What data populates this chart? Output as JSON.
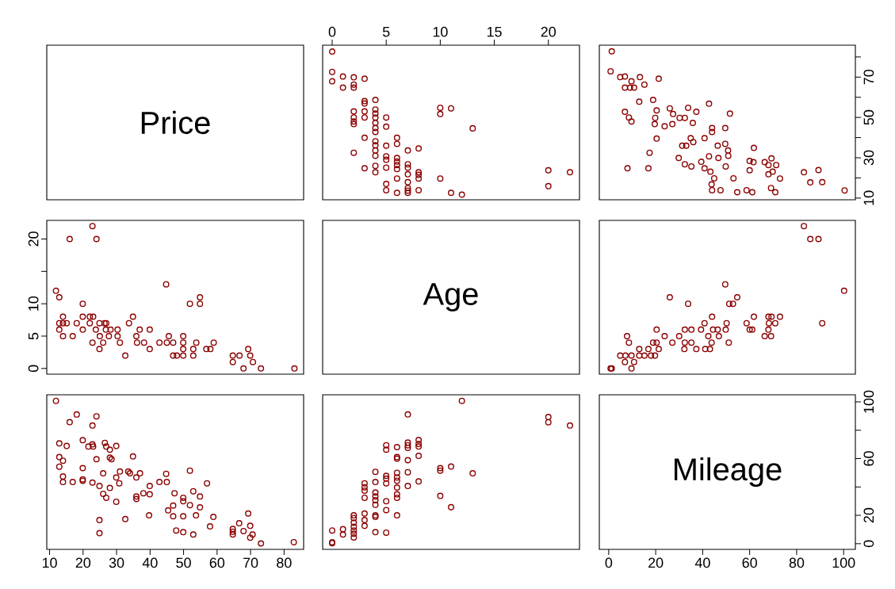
{
  "chart_data": [
    {
      "type": "other",
      "annotations": [
        "Price"
      ]
    },
    {
      "type": "scatter",
      "marker": "circle",
      "color": "#8b0000",
      "tick_labels": "x",
      "xlim": [
        -0.88,
        22.88
      ],
      "xticks": [
        0,
        5,
        10,
        15,
        20
      ],
      "ylim": [
        9.16,
        85.84
      ],
      "x": [
        0,
        0,
        0,
        1,
        1,
        2,
        2,
        2,
        3,
        3,
        3,
        3,
        3,
        4,
        4,
        4,
        4,
        4,
        4,
        4,
        2,
        2,
        2,
        2,
        5,
        5,
        10,
        10,
        11,
        13,
        3,
        4,
        4,
        4,
        4,
        4,
        4,
        2,
        5,
        5,
        5,
        5,
        6,
        6,
        6,
        6,
        6,
        6,
        6,
        7,
        7,
        7,
        7,
        7,
        7,
        7,
        7,
        8,
        8,
        8,
        8,
        8,
        3,
        5,
        5,
        6,
        10,
        11,
        12,
        20,
        20,
        22
      ],
      "values": [
        82.7,
        72.6,
        67.9,
        70.3,
        64.8,
        69.9,
        66.3,
        64.8,
        69.2,
        58.1,
        56.9,
        53,
        50,
        58.7,
        53.9,
        51.9,
        50,
        47.3,
        44.7,
        42.8,
        53,
        50,
        48,
        46.7,
        50,
        45.4,
        54.8,
        51.7,
        54.5,
        44.6,
        39.9,
        38.2,
        36.2,
        33.6,
        31,
        26,
        22.8,
        32.5,
        36,
        30.7,
        29,
        25.1,
        39.9,
        36.9,
        29.9,
        28.1,
        26.4,
        24.4,
        19.7,
        33.6,
        26.8,
        25.1,
        21.8,
        17.9,
        15,
        13.7,
        12.6,
        34.6,
        22.8,
        21.5,
        19.7,
        13.9,
        24.8,
        17,
        13.9,
        12.6,
        19.7,
        12.6,
        11.7,
        23.8,
        15.9,
        22.8
      ]
    },
    {
      "type": "scatter",
      "marker": "circle",
      "color": "#8b0000",
      "tick_labels": "y",
      "xlim": [
        -4,
        105
      ],
      "ylim": [
        9.16,
        85.84
      ],
      "yticks": [
        10,
        {
          "value": 20,
          "label": null
        },
        30,
        {
          "value": 40,
          "label": null
        },
        50,
        {
          "value": 60,
          "label": null
        },
        70,
        {
          "value": 80,
          "label": null
        }
      ],
      "x": [
        1.3,
        0.8,
        4.9,
        6.9,
        13.3,
        21.3,
        9.7,
        15.2,
        6.9,
        9.1,
        10.8,
        13,
        18.9,
        42.7,
        6.9,
        8.6,
        9.7,
        20.4,
        19.8,
        19.6,
        26,
        27.4,
        33.8,
        37.3,
        30.2,
        32.4,
        35.8,
        23.8,
        27.1,
        51.6,
        44,
        44,
        49.6,
        20.4,
        17.4,
        8,
        16.9,
        31.3,
        33,
        34.9,
        36,
        40.8,
        29.8,
        32.4,
        35.2,
        39.4,
        40.8,
        42.7,
        43.3,
        44.9,
        43.8,
        44,
        47.6,
        46.4,
        46.7,
        49.6,
        50.8,
        50.9,
        49.8,
        53.1,
        54.7,
        58.7,
        61.1,
        60,
        61.6,
        60,
        61.8,
        66.4,
        68,
        69.3,
        71.3,
        68,
        69.8,
        69.1,
        70.9,
        72.9,
        83.1,
        89.3,
        85.8,
        90.9,
        100.4
      ],
      "values": [
        82.8,
        72.9,
        70,
        70.3,
        70,
        69.2,
        67.9,
        66.3,
        64.8,
        64.8,
        64.8,
        57.8,
        58.7,
        56.8,
        52.8,
        50,
        48,
        53.5,
        49.8,
        46.7,
        54.5,
        51.7,
        54.8,
        52.8,
        49.8,
        49.8,
        47.3,
        45.6,
        46.7,
        51.9,
        44.7,
        42.8,
        44.7,
        39.5,
        32.5,
        24.8,
        24.8,
        36,
        36,
        39.7,
        37.8,
        39.7,
        29.9,
        26.8,
        25.7,
        28,
        24.8,
        30.7,
        23.1,
        19.8,
        16.8,
        13.9,
        13.9,
        36,
        29.9,
        36.9,
        33.6,
        31,
        25.7,
        19.8,
        12.9,
        13.9,
        12.9,
        28.4,
        27.8,
        23.8,
        34.9,
        27.8,
        26.4,
        29.7,
        26.4,
        21.8,
        23.1,
        15,
        12.9,
        19.7,
        22.8,
        23.9,
        17.8,
        17.9,
        13.8
      ]
    },
    {
      "type": "scatter",
      "marker": "circle",
      "color": "#8b0000",
      "tick_labels": "y",
      "xlim": [
        9.16,
        85.84
      ],
      "ylim": [
        -0.88,
        22.88
      ],
      "yticks": [
        0,
        5,
        10,
        {
          "value": 15,
          "label": null
        },
        20
      ],
      "x": [
        11.9,
        12.9,
        12.9,
        14,
        14,
        15.1,
        12.9,
        14,
        16,
        22.8,
        24,
        16.9,
        18.1,
        19.9,
        19.9,
        19.9,
        22,
        22,
        23,
        22.8,
        24.9,
        25,
        26,
        23.8,
        24.9,
        26.4,
        26.9,
        26.8,
        27.7,
        28.2,
        30.3,
        30.3,
        31,
        32.6,
        33.7,
        34.9,
        35.9,
        36.1,
        36.9,
        38.2,
        39.9,
        39.9,
        42.8,
        44.8,
        45.6,
        45,
        46.9,
        46.9,
        48,
        49.9,
        49.9,
        49.9,
        49.9,
        51.9,
        52.9,
        52.9,
        53.8,
        54.9,
        54.9,
        56.8,
        58,
        59,
        64.7,
        64.7,
        66.7,
        67.9,
        69.3,
        69.9,
        70.7,
        73.1,
        83.1
      ],
      "values": [
        12,
        11,
        7,
        8,
        7,
        7,
        6,
        5,
        20,
        22,
        20,
        5,
        7,
        10,
        8,
        6,
        8,
        7,
        8,
        4,
        3,
        5,
        4,
        6,
        7,
        7,
        7,
        6,
        5,
        6,
        6,
        5,
        4,
        2,
        7,
        8,
        5,
        4,
        6,
        4,
        6,
        3,
        4,
        13,
        5,
        4,
        4,
        2,
        2,
        5,
        4,
        3,
        2,
        10,
        3,
        2,
        4,
        11,
        10,
        3,
        3,
        4,
        2,
        1,
        2,
        0,
        3,
        2,
        1,
        0,
        0
      ]
    },
    {
      "type": "other",
      "annotations": [
        "Age"
      ]
    },
    {
      "type": "scatter",
      "marker": "circle",
      "color": "#8b0000",
      "xlim": [
        -4,
        105
      ],
      "ylim": [
        -0.88,
        22.88
      ],
      "x": [
        0.8,
        1.3,
        9.7,
        6.9,
        10.8,
        4.9,
        7.1,
        9.7,
        13,
        15.2,
        18,
        19.7,
        7.8,
        8.6,
        13,
        16.9,
        21.3,
        18.9,
        20.4,
        20.4,
        23.8,
        26,
        33.8,
        27.1,
        30,
        32.4,
        35.2,
        32.2,
        32.4,
        35.2,
        37.3,
        39.3,
        40.8,
        44,
        41.1,
        43.1,
        42.4,
        43.8,
        44.4,
        46.4,
        46.9,
        49.6,
        50.2,
        49.8,
        51.1,
        51.3,
        52.9,
        54.7,
        58.7,
        60,
        61.1,
        61.8,
        66.4,
        68,
        69.1,
        68,
        69.3,
        68.2,
        70.9,
        72.9,
        83.1,
        85.8,
        89.3,
        90.9,
        100.2
      ],
      "values": [
        0,
        0,
        0,
        1,
        1,
        2,
        2,
        2,
        2,
        2,
        2,
        2,
        5,
        4,
        3,
        3,
        3,
        4,
        4,
        6,
        5,
        11,
        10,
        4,
        5,
        6,
        6,
        3,
        4,
        4,
        3,
        6,
        7,
        8,
        3,
        3,
        5,
        4,
        6,
        6,
        5,
        13,
        7,
        6,
        4,
        10,
        10,
        11,
        7,
        6,
        6,
        8,
        5,
        6,
        5,
        8,
        8,
        7,
        7,
        8,
        22,
        20,
        20,
        7,
        12
      ]
    },
    {
      "type": "scatter",
      "marker": "circle",
      "color": "#8b0000",
      "tick_labels": "x",
      "xlim": [
        9.16,
        85.84
      ],
      "xticks": [
        10,
        20,
        30,
        40,
        50,
        60,
        70,
        80
      ],
      "ylim": [
        -4,
        105
      ],
      "x": [
        11.9,
        18.1,
        16,
        24,
        22.8,
        12.9,
        15.1,
        19.9,
        21.6,
        22.8,
        23,
        26.5,
        26.9,
        28,
        29.9,
        12.9,
        14,
        12.9,
        24,
        28,
        28.5,
        34.9,
        14,
        14,
        16.9,
        19.9,
        19.9,
        19.9,
        22.8,
        26,
        24.9,
        28,
        26,
        26.9,
        29.9,
        31,
        30.8,
        29.9,
        33.5,
        34,
        35.9,
        37,
        35.9,
        35.9,
        38,
        39.9,
        39.9,
        24.9,
        24.9,
        32.6,
        39.7,
        42.8,
        44.8,
        45,
        47.3,
        45.4,
        46.9,
        46.9,
        49.9,
        49.9,
        51.9,
        51.9,
        52.9,
        54.9,
        54.9,
        53.7,
        49.9,
        47.8,
        49.9,
        52.9,
        57,
        57.9,
        58.9,
        64.7,
        64.7,
        64.7,
        66.6,
        67.9,
        69.3,
        69.9,
        69.9,
        70.6,
        73.1,
        82.9
      ],
      "values": [
        100.7,
        91.1,
        85.7,
        89.8,
        83.3,
        70.7,
        68.9,
        73,
        68.5,
        70,
        68.5,
        71.1,
        68.5,
        66.3,
        68.9,
        61.1,
        58.5,
        54.3,
        59.6,
        60.7,
        59.6,
        61.5,
        47.4,
        43.5,
        43.5,
        53.3,
        45.4,
        44.4,
        43.1,
        49.6,
        40.7,
        39.3,
        35.2,
        32.4,
        46.7,
        50.9,
        42.6,
        29.6,
        50.9,
        49.6,
        46.7,
        49.6,
        33.3,
        31.5,
        35.6,
        40.7,
        34.8,
        16.7,
        7.4,
        17.4,
        20,
        43.5,
        49.3,
        43.5,
        35.6,
        23.5,
        26.9,
        19.3,
        32.4,
        30,
        51.5,
        27.2,
        37,
        33.3,
        25.6,
        20,
        19.3,
        9.3,
        8.1,
        6.5,
        42.6,
        12.2,
        18.9,
        10.4,
        8.5,
        6.5,
        14.4,
        8.9,
        21.3,
        12.6,
        4.3,
        6.5,
        0.2,
        1.1
      ]
    },
    {
      "type": "scatter",
      "marker": "circle",
      "color": "#8b0000",
      "xlim": [
        -0.88,
        22.88
      ],
      "ylim": [
        -4,
        105
      ],
      "x": [
        0,
        0,
        0,
        1,
        1,
        2,
        2,
        2,
        2,
        2,
        2,
        2,
        3,
        3,
        3,
        3,
        3,
        3,
        3,
        4,
        4,
        4,
        4,
        4,
        4,
        4,
        4,
        4,
        5,
        5,
        5,
        5,
        5,
        5,
        5,
        5,
        6,
        6,
        6,
        6,
        6,
        6,
        6,
        6,
        6,
        6,
        7,
        7,
        7,
        7,
        7,
        7,
        7,
        8,
        8,
        8,
        8,
        8,
        10,
        10,
        10,
        11,
        11,
        12,
        13,
        20,
        20,
        22
      ],
      "values": [
        0.4,
        1.1,
        9.3,
        10.2,
        6.5,
        20,
        18.1,
        14.8,
        12,
        9.3,
        7,
        4.4,
        42.6,
        39.8,
        37.4,
        32.4,
        21.3,
        16.7,
        12.6,
        50.7,
        43.5,
        36.1,
        33.3,
        30.6,
        27.4,
        20,
        18.9,
        8.1,
        69.4,
        66.3,
        47.8,
        45.9,
        42.6,
        30,
        23.7,
        7.8,
        68.1,
        61.1,
        60,
        50,
        46.7,
        44.4,
        39.6,
        34.8,
        32.4,
        20,
        91.1,
        71.3,
        69.4,
        67.6,
        58.9,
        50.4,
        40.7,
        73.1,
        70.4,
        68.5,
        61.9,
        43.9,
        53.3,
        51.5,
        33.7,
        54.4,
        25.7,
        100.7,
        49.6,
        89.3,
        85.6,
        83.3
      ]
    },
    {
      "type": "scatter",
      "annotations": [
        "Mileage"
      ],
      "xlim": [
        -4,
        105
      ],
      "xticks": [
        0,
        20,
        40,
        60,
        80,
        100
      ],
      "ylim": [
        -4,
        105
      ],
      "yticks": [
        0,
        20,
        {
          "value": 40,
          "label": null
        },
        60,
        {
          "value": 80,
          "label": null
        },
        100
      ]
    }
  ]
}
